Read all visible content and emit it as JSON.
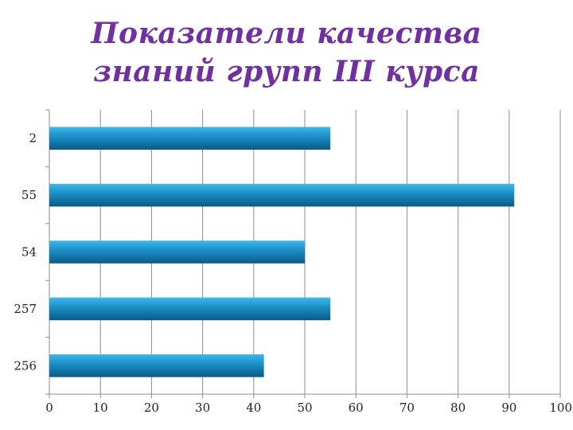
{
  "chart_data": {
    "type": "bar",
    "orientation": "horizontal",
    "title": "Показатели качества знаний групп III курса",
    "title_lines": [
      "Показатели качества",
      "знаний групп III курса"
    ],
    "categories": [
      "2",
      "55",
      "54",
      "257",
      "256"
    ],
    "values": [
      55,
      91,
      50,
      55,
      42
    ],
    "xlim": [
      0,
      100
    ],
    "x_ticks": [
      0,
      10,
      20,
      30,
      40,
      50,
      60,
      70,
      80,
      90,
      100
    ],
    "x_tick_labels": [
      "0",
      "10",
      "20",
      "30",
      "40",
      "50",
      "60",
      "70",
      "80",
      "90",
      "100"
    ],
    "xlabel": "",
    "ylabel": "",
    "grid": true,
    "legend": "none",
    "colors": {
      "bar_light": "#3fb6ea",
      "bar_mid": "#1a8cc4",
      "bar_dark": "#0a5a85",
      "title": "#7030a0",
      "grid": "#8c8c8c"
    }
  }
}
